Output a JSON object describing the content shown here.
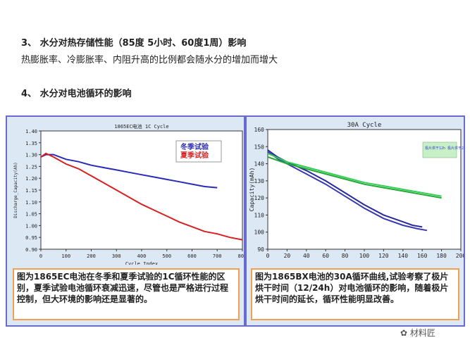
{
  "section3": {
    "title": "3、 水分对热存储性能（85度 5小时、60度1周）影响",
    "desc": "热膨胀率、冷膨胀率、内阻升高的比例都会随水分的增加而增大"
  },
  "section4": {
    "title": "4、 水分对电池循环的影响"
  },
  "watermark": "材料匠",
  "chart_data": [
    {
      "type": "line",
      "title": "1865EC电池 1C Cycle",
      "xlabel": "Cycle_Index",
      "ylabel": "Discharge_Capacity(Ah)",
      "xlim": [
        0,
        800
      ],
      "ylim": [
        0.9,
        1.4
      ],
      "xticks": [
        "0",
        "100",
        "200",
        "300",
        "400",
        "500",
        "600",
        "700",
        "800"
      ],
      "yticks": [
        "0.90",
        "0.95",
        "1.00",
        "1.05",
        "1.10",
        "1.15",
        "1.20",
        "1.25",
        "1.30",
        "1.35",
        "1.40"
      ],
      "legend_position": "top-right",
      "series": [
        {
          "name": "冬季试验",
          "color": "#2a2ab8",
          "x": [
            0,
            20,
            50,
            100,
            150,
            200,
            250,
            300,
            350,
            400,
            450,
            500,
            550,
            600,
            650,
            700
          ],
          "y": [
            1.29,
            1.3,
            1.3,
            1.28,
            1.27,
            1.255,
            1.245,
            1.235,
            1.225,
            1.215,
            1.205,
            1.195,
            1.185,
            1.175,
            1.165,
            1.16
          ]
        },
        {
          "name": "夏季试验",
          "color": "#d82020",
          "x": [
            0,
            20,
            50,
            100,
            150,
            200,
            250,
            300,
            350,
            400,
            450,
            500,
            550,
            600,
            650,
            700,
            750,
            800
          ],
          "y": [
            1.29,
            1.305,
            1.29,
            1.26,
            1.24,
            1.21,
            1.18,
            1.15,
            1.12,
            1.09,
            1.065,
            1.04,
            1.015,
            0.995,
            0.975,
            0.965,
            0.95,
            0.94
          ]
        }
      ]
    },
    {
      "type": "line",
      "title": "30A Cycle",
      "xlabel": "",
      "ylabel": "Capacity(mAh)",
      "xlim": [
        0,
        200
      ],
      "ylim": [
        90,
        160
      ],
      "xticks": [
        "0",
        "20",
        "40",
        "60",
        "80",
        "100",
        "120",
        "140",
        "160",
        "180",
        "200"
      ],
      "yticks": [
        "90",
        "100",
        "110",
        "120",
        "130",
        "140",
        "150",
        "160"
      ],
      "legend_position": "top-right",
      "legend_text": "极片烘干12h 极片烘干24h",
      "series": [
        {
          "color": "#2a2aa0",
          "x": [
            0,
            10,
            20,
            40,
            60,
            80,
            100,
            120,
            140,
            150,
            160
          ],
          "y": [
            148,
            144,
            141,
            136,
            130,
            123,
            116,
            110,
            106,
            104,
            103
          ]
        },
        {
          "color": "#3a3ab0",
          "x": [
            0,
            10,
            20,
            40,
            60,
            80,
            100,
            120,
            140,
            155,
            165
          ],
          "y": [
            147,
            143,
            140,
            134,
            128,
            121,
            114,
            108,
            104,
            102,
            101
          ]
        },
        {
          "color": "#33cc55",
          "x": [
            0,
            20,
            40,
            60,
            80,
            100,
            120,
            140,
            160,
            180
          ],
          "y": [
            146,
            141,
            138,
            135,
            132,
            129,
            127,
            125,
            123,
            121
          ]
        },
        {
          "color": "#22aa33",
          "x": [
            0,
            20,
            40,
            60,
            80,
            100,
            120,
            140,
            160,
            180
          ],
          "y": [
            144,
            140,
            137,
            134,
            131,
            128,
            126,
            124,
            122,
            120
          ]
        }
      ]
    }
  ],
  "captions": {
    "left": "图为1865EC电池在冬季和夏季试验的1C循环性能的区别，夏季试验电池循环衰减迅速，尽管也是严格进行过程控制，但大环境的影响还是显著的。",
    "right": "图为1865BX电池的30A循环曲线,试验考察了极片烘干时间（12/24h）对电池循环的影响，随着极片烘干时间的延长，循环性能明显改善。"
  }
}
